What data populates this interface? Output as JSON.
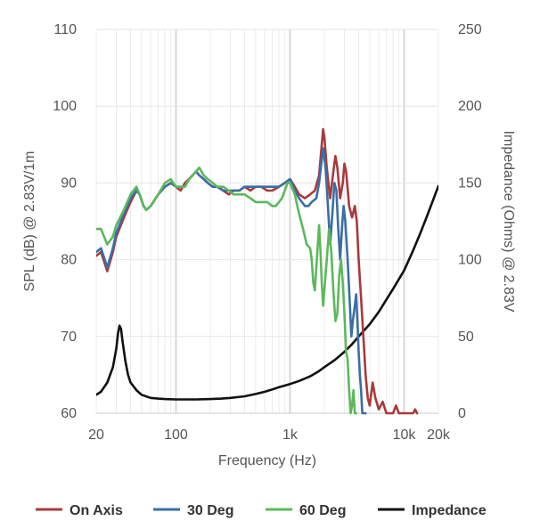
{
  "chart_data": {
    "type": "line",
    "xlabel": "Frequency (Hz)",
    "ylabel_left": "SPL (dB) @ 2.83V/1m",
    "ylabel_right": "Impedance (Ohms) @ 2.83V",
    "x_scale": "log",
    "xlim": [
      20,
      20000
    ],
    "ylim_left": [
      60,
      110
    ],
    "ylim_right": [
      0,
      250
    ],
    "x_ticks": [
      {
        "value": 20,
        "label": "20"
      },
      {
        "value": 100,
        "label": "100"
      },
      {
        "value": 1000,
        "label": "1k"
      },
      {
        "value": 10000,
        "label": "10k"
      },
      {
        "value": 20000,
        "label": "20k"
      }
    ],
    "y_ticks_left": [
      {
        "value": 60,
        "label": "60"
      },
      {
        "value": 70,
        "label": "70"
      },
      {
        "value": 80,
        "label": "80"
      },
      {
        "value": 90,
        "label": "90"
      },
      {
        "value": 100,
        "label": "100"
      },
      {
        "value": 110,
        "label": "110"
      }
    ],
    "y_ticks_right": [
      {
        "value": 0,
        "label": "0"
      },
      {
        "value": 50,
        "label": "50"
      },
      {
        "value": 100,
        "label": "100"
      },
      {
        "value": 150,
        "label": "150"
      },
      {
        "value": 200,
        "label": "200"
      },
      {
        "value": 250,
        "label": "250"
      }
    ],
    "grid": true,
    "legend_position": "bottom",
    "series": [
      {
        "name": "On Axis",
        "color": "#a83a3c",
        "axis": "left",
        "points": [
          [
            20,
            80.5
          ],
          [
            22,
            81
          ],
          [
            25,
            78.5
          ],
          [
            28,
            81
          ],
          [
            30,
            83
          ],
          [
            35,
            85.5
          ],
          [
            40,
            87.5
          ],
          [
            45,
            89
          ],
          [
            48,
            88.5
          ],
          [
            52,
            87
          ],
          [
            55,
            86.5
          ],
          [
            60,
            87
          ],
          [
            70,
            88.5
          ],
          [
            80,
            89.5
          ],
          [
            90,
            90
          ],
          [
            100,
            89.5
          ],
          [
            110,
            89
          ],
          [
            120,
            90
          ],
          [
            130,
            90.5
          ],
          [
            140,
            91
          ],
          [
            150,
            91.5
          ],
          [
            160,
            91
          ],
          [
            175,
            90.5
          ],
          [
            190,
            90
          ],
          [
            210,
            89.5
          ],
          [
            230,
            89.5
          ],
          [
            260,
            89
          ],
          [
            290,
            88.5
          ],
          [
            320,
            89
          ],
          [
            360,
            89
          ],
          [
            400,
            89.5
          ],
          [
            450,
            89
          ],
          [
            500,
            89.5
          ],
          [
            560,
            89.5
          ],
          [
            630,
            89
          ],
          [
            700,
            89
          ],
          [
            800,
            89.5
          ],
          [
            900,
            90
          ],
          [
            1000,
            90.5
          ],
          [
            1100,
            89.5
          ],
          [
            1200,
            88.5
          ],
          [
            1350,
            88
          ],
          [
            1500,
            88.5
          ],
          [
            1650,
            89
          ],
          [
            1800,
            91
          ],
          [
            1900,
            95
          ],
          [
            1950,
            97
          ],
          [
            2000,
            96
          ],
          [
            2100,
            92
          ],
          [
            2250,
            88
          ],
          [
            2400,
            91.5
          ],
          [
            2500,
            93.5
          ],
          [
            2600,
            92
          ],
          [
            2750,
            88
          ],
          [
            2900,
            90
          ],
          [
            3000,
            92.5
          ],
          [
            3100,
            91.5
          ],
          [
            3300,
            87
          ],
          [
            3500,
            85.5
          ],
          [
            3700,
            87
          ],
          [
            3850,
            85
          ],
          [
            4000,
            80
          ],
          [
            4200,
            75
          ],
          [
            4400,
            70
          ],
          [
            4600,
            65
          ],
          [
            4800,
            62
          ],
          [
            5000,
            61
          ],
          [
            5300,
            64
          ],
          [
            5600,
            62
          ],
          [
            6000,
            60.5
          ],
          [
            6500,
            61.5
          ],
          [
            7000,
            60
          ],
          [
            8000,
            60
          ],
          [
            8500,
            61
          ],
          [
            9000,
            60
          ],
          [
            12000,
            60
          ],
          [
            12500,
            60.5
          ],
          [
            13000,
            60
          ]
        ]
      },
      {
        "name": "30 Deg",
        "color": "#3a6ea5",
        "axis": "left",
        "points": [
          [
            20,
            81
          ],
          [
            22,
            81.5
          ],
          [
            25,
            79
          ],
          [
            28,
            81.5
          ],
          [
            30,
            83.5
          ],
          [
            35,
            86
          ],
          [
            40,
            88
          ],
          [
            45,
            89
          ],
          [
            48,
            88.5
          ],
          [
            52,
            87
          ],
          [
            55,
            86.5
          ],
          [
            60,
            87
          ],
          [
            70,
            88.5
          ],
          [
            80,
            89.5
          ],
          [
            90,
            90
          ],
          [
            100,
            89.5
          ],
          [
            110,
            89.5
          ],
          [
            120,
            89.5
          ],
          [
            130,
            90.5
          ],
          [
            140,
            91
          ],
          [
            150,
            91.5
          ],
          [
            160,
            91
          ],
          [
            175,
            90.5
          ],
          [
            190,
            90
          ],
          [
            210,
            89.5
          ],
          [
            230,
            89.5
          ],
          [
            260,
            89
          ],
          [
            290,
            89
          ],
          [
            320,
            89
          ],
          [
            360,
            89
          ],
          [
            400,
            89.5
          ],
          [
            450,
            89.5
          ],
          [
            500,
            89.5
          ],
          [
            560,
            89.5
          ],
          [
            630,
            89.5
          ],
          [
            700,
            89.5
          ],
          [
            800,
            89.5
          ],
          [
            900,
            90
          ],
          [
            1000,
            90.5
          ],
          [
            1100,
            89
          ],
          [
            1200,
            88
          ],
          [
            1350,
            87
          ],
          [
            1450,
            87
          ],
          [
            1550,
            87.5
          ],
          [
            1700,
            88
          ],
          [
            1800,
            90
          ],
          [
            1900,
            93
          ],
          [
            1950,
            94.5
          ],
          [
            2050,
            92
          ],
          [
            2150,
            87
          ],
          [
            2250,
            82
          ],
          [
            2350,
            86
          ],
          [
            2450,
            90
          ],
          [
            2550,
            89
          ],
          [
            2650,
            84
          ],
          [
            2750,
            80
          ],
          [
            2850,
            84
          ],
          [
            2950,
            87
          ],
          [
            3050,
            85
          ],
          [
            3200,
            80
          ],
          [
            3350,
            74
          ],
          [
            3450,
            70
          ],
          [
            3550,
            72
          ],
          [
            3700,
            74
          ],
          [
            3800,
            75.5
          ],
          [
            3900,
            72
          ],
          [
            4000,
            68
          ],
          [
            4100,
            65
          ],
          [
            4200,
            63
          ],
          [
            4300,
            60
          ],
          [
            4600,
            60
          ]
        ]
      },
      {
        "name": "60 Deg",
        "color": "#5cb85c",
        "axis": "left",
        "points": [
          [
            20,
            84
          ],
          [
            22,
            84
          ],
          [
            25,
            82
          ],
          [
            28,
            83
          ],
          [
            30,
            84.5
          ],
          [
            35,
            86.5
          ],
          [
            40,
            88.5
          ],
          [
            45,
            89.5
          ],
          [
            48,
            88.5
          ],
          [
            52,
            87
          ],
          [
            55,
            86.5
          ],
          [
            60,
            87
          ],
          [
            70,
            88.5
          ],
          [
            80,
            90
          ],
          [
            90,
            90.5
          ],
          [
            100,
            89.5
          ],
          [
            110,
            89.5
          ],
          [
            120,
            89.5
          ],
          [
            130,
            90.5
          ],
          [
            140,
            91
          ],
          [
            150,
            91.5
          ],
          [
            160,
            92
          ],
          [
            175,
            91
          ],
          [
            190,
            90.5
          ],
          [
            210,
            90
          ],
          [
            230,
            89.5
          ],
          [
            260,
            89.5
          ],
          [
            290,
            89
          ],
          [
            320,
            88.5
          ],
          [
            360,
            88.5
          ],
          [
            400,
            88.5
          ],
          [
            450,
            88
          ],
          [
            500,
            87.5
          ],
          [
            560,
            87.5
          ],
          [
            630,
            87.5
          ],
          [
            700,
            87
          ],
          [
            750,
            87
          ],
          [
            800,
            87.5
          ],
          [
            850,
            88
          ],
          [
            900,
            89
          ],
          [
            950,
            90
          ],
          [
            1000,
            90
          ],
          [
            1100,
            88.5
          ],
          [
            1200,
            86
          ],
          [
            1300,
            84
          ],
          [
            1400,
            82
          ],
          [
            1500,
            81.5
          ],
          [
            1550,
            80
          ],
          [
            1600,
            77
          ],
          [
            1650,
            76
          ],
          [
            1700,
            79
          ],
          [
            1800,
            84.5
          ],
          [
            1850,
            81
          ],
          [
            1900,
            77
          ],
          [
            1950,
            74
          ],
          [
            2000,
            76
          ],
          [
            2100,
            80
          ],
          [
            2200,
            84
          ],
          [
            2300,
            81
          ],
          [
            2400,
            76
          ],
          [
            2500,
            72
          ],
          [
            2600,
            73
          ],
          [
            2700,
            78
          ],
          [
            2800,
            80
          ],
          [
            2900,
            77
          ],
          [
            3000,
            73
          ],
          [
            3100,
            68
          ],
          [
            3200,
            67
          ],
          [
            3300,
            63
          ],
          [
            3400,
            60
          ],
          [
            3500,
            61
          ],
          [
            3600,
            63
          ],
          [
            3700,
            60
          ],
          [
            3800,
            60
          ]
        ]
      },
      {
        "name": "Impedance",
        "color": "#111111",
        "axis": "right",
        "points": [
          [
            20,
            12
          ],
          [
            22,
            14
          ],
          [
            25,
            20
          ],
          [
            28,
            30
          ],
          [
            30,
            42
          ],
          [
            31,
            52
          ],
          [
            32,
            57
          ],
          [
            33,
            55
          ],
          [
            34,
            47
          ],
          [
            36,
            34
          ],
          [
            38,
            25
          ],
          [
            40,
            20
          ],
          [
            45,
            15
          ],
          [
            50,
            12
          ],
          [
            60,
            10
          ],
          [
            70,
            9.5
          ],
          [
            80,
            9.2
          ],
          [
            100,
            9
          ],
          [
            120,
            9
          ],
          [
            150,
            9
          ],
          [
            200,
            9.2
          ],
          [
            250,
            9.5
          ],
          [
            300,
            10
          ],
          [
            400,
            11
          ],
          [
            500,
            12.5
          ],
          [
            600,
            14
          ],
          [
            700,
            15.5
          ],
          [
            800,
            17
          ],
          [
            1000,
            19
          ],
          [
            1200,
            21
          ],
          [
            1500,
            24
          ],
          [
            1800,
            27.5
          ],
          [
            2000,
            30
          ],
          [
            2500,
            35
          ],
          [
            3000,
            40
          ],
          [
            3500,
            45
          ],
          [
            4000,
            50
          ],
          [
            5000,
            58
          ],
          [
            6000,
            66
          ],
          [
            7000,
            74
          ],
          [
            8000,
            81
          ],
          [
            10000,
            93
          ],
          [
            12000,
            106
          ],
          [
            14000,
            118
          ],
          [
            16000,
            129
          ],
          [
            18000,
            139
          ],
          [
            20000,
            148
          ]
        ]
      }
    ],
    "legend": [
      {
        "label": "On Axis",
        "color": "#a83a3c"
      },
      {
        "label": "30 Deg",
        "color": "#3a6ea5"
      },
      {
        "label": "60 Deg",
        "color": "#5cb85c"
      },
      {
        "label": "Impedance",
        "color": "#111111"
      }
    ]
  }
}
